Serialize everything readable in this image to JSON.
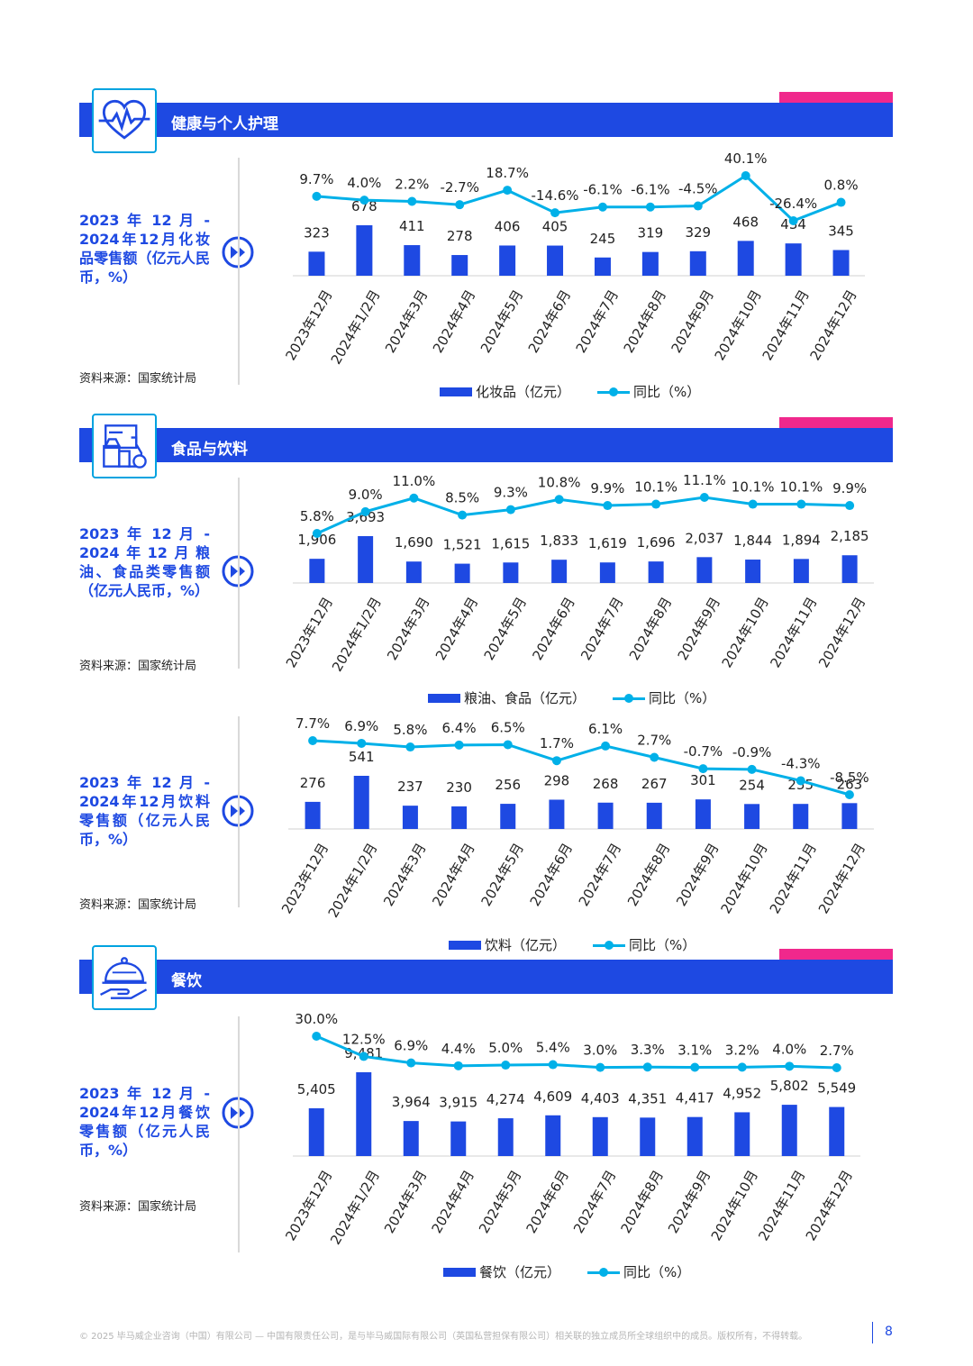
{
  "colors": {
    "bar": "#1e49e2",
    "line": "#00b0e8",
    "band": "#1e49e2",
    "accent": "#f0288c"
  },
  "sections": {
    "health": {
      "title": "健康与个人护理",
      "icon": "heart-pulse-icon"
    },
    "food": {
      "title": "食品与饮料",
      "icon": "grocery-icon"
    },
    "dining": {
      "title": "餐饮",
      "icon": "cloche-icon"
    }
  },
  "descriptions": {
    "cosmetics": "2023 年 12 月 - 2024年12月化妆品零售额（亿元人民币，%）",
    "grain": "2023 年 12 月 - 2024年12月粮油、食品类零售额（亿元人民币，%）",
    "beverage": "2023 年 12 月 - 2024年12月饮料零售额（亿元人民币，%）",
    "dining": "2023 年 12 月 - 2024年12月餐饮零售额（亿元人民币，%）"
  },
  "source_text": "资料来源：国家统计局",
  "legends": {
    "cosmetics": {
      "bar": "化妆品（亿元）",
      "line": "同比（%）"
    },
    "grain": {
      "bar": "粮油、食品（亿元）",
      "line": "同比（%）"
    },
    "beverage": {
      "bar": "饮料（亿元）",
      "line": "同比（%）"
    },
    "dining": {
      "bar": "餐饮（亿元）",
      "line": "同比（%）"
    }
  },
  "chart_data": [
    {
      "type": "bar",
      "categories": [
        "2023年12月",
        "2024年1/2月",
        "2024年3月",
        "2024年4月",
        "2024年5月",
        "2024年6月",
        "2024年7月",
        "2024年8月",
        "2024年9月",
        "2024年10月",
        "2024年11月",
        "2024年12月"
      ],
      "series": [
        {
          "name": "化妆品（亿元）",
          "type": "bar",
          "values": [
            323,
            678,
            411,
            278,
            406,
            405,
            245,
            319,
            329,
            468,
            434,
            345
          ],
          "labels": [
            "323",
            "678",
            "411",
            "278",
            "406",
            "405",
            "245",
            "319",
            "329",
            "468",
            "434",
            "345"
          ]
        },
        {
          "name": "同比（%）",
          "type": "line",
          "values": [
            9.7,
            4.0,
            2.2,
            -2.7,
            18.7,
            -14.6,
            -6.1,
            -6.1,
            -4.5,
            40.1,
            -26.4,
            0.8
          ],
          "labels": [
            "9.7%",
            "4.0%",
            "2.2%",
            "-2.7%",
            "18.7%",
            "-14.6%",
            "-6.1%",
            "-6.1%",
            "-4.5%",
            "40.1%",
            "-26.4%",
            "0.8%"
          ]
        }
      ]
    },
    {
      "type": "bar",
      "categories": [
        "2023年12月",
        "2024年1/2月",
        "2024年3月",
        "2024年4月",
        "2024年5月",
        "2024年6月",
        "2024年7月",
        "2024年8月",
        "2024年9月",
        "2024年10月",
        "2024年11月",
        "2024年12月"
      ],
      "series": [
        {
          "name": "粮油、食品（亿元）",
          "type": "bar",
          "values": [
            1906,
            3693,
            1690,
            1521,
            1615,
            1833,
            1619,
            1696,
            2037,
            1844,
            1894,
            2185
          ],
          "labels": [
            "1,906",
            "3,693",
            "1,690",
            "1,521",
            "1,615",
            "1,833",
            "1,619",
            "1,696",
            "2,037",
            "1,844",
            "1,894",
            "2,185"
          ]
        },
        {
          "name": "同比（%）",
          "type": "line",
          "values": [
            5.8,
            9.0,
            11.0,
            8.5,
            9.3,
            10.8,
            9.9,
            10.1,
            11.1,
            10.1,
            10.1,
            9.9
          ],
          "labels": [
            "5.8%",
            "9.0%",
            "11.0%",
            "8.5%",
            "9.3%",
            "10.8%",
            "9.9%",
            "10.1%",
            "11.1%",
            "10.1%",
            "10.1%",
            "9.9%"
          ]
        }
      ]
    },
    {
      "type": "bar",
      "categories": [
        "2023年12月",
        "2024年1/2月",
        "2024年3月",
        "2024年4月",
        "2024年5月",
        "2024年6月",
        "2024年7月",
        "2024年8月",
        "2024年9月",
        "2024年10月",
        "2024年11月",
        "2024年12月"
      ],
      "series": [
        {
          "name": "饮料（亿元）",
          "type": "bar",
          "values": [
            276,
            541,
            237,
            230,
            256,
            298,
            268,
            267,
            301,
            254,
            255,
            263
          ],
          "labels": [
            "276",
            "541",
            "237",
            "230",
            "256",
            "298",
            "268",
            "267",
            "301",
            "254",
            "255",
            "263"
          ]
        },
        {
          "name": "同比（%）",
          "type": "line",
          "values": [
            7.7,
            6.9,
            5.8,
            6.4,
            6.5,
            1.7,
            6.1,
            2.7,
            -0.7,
            -0.9,
            -4.3,
            -8.5
          ],
          "labels": [
            "7.7%",
            "6.9%",
            "5.8%",
            "6.4%",
            "6.5%",
            "1.7%",
            "6.1%",
            "2.7%",
            "-0.7%",
            "-0.9%",
            "-4.3%",
            "-8.5%"
          ]
        }
      ]
    },
    {
      "type": "bar",
      "categories": [
        "2023年12月",
        "2024年1/2月",
        "2024年3月",
        "2024年4月",
        "2024年5月",
        "2024年6月",
        "2024年7月",
        "2024年8月",
        "2024年9月",
        "2024年10月",
        "2024年11月",
        "2024年12月"
      ],
      "series": [
        {
          "name": "餐饮（亿元）",
          "type": "bar",
          "values": [
            5405,
            9481,
            3964,
            3915,
            4274,
            4609,
            4403,
            4351,
            4417,
            4952,
            5802,
            5549
          ],
          "labels": [
            "5,405",
            "9,481",
            "3,964",
            "3,915",
            "4,274",
            "4,609",
            "4,403",
            "4,351",
            "4,417",
            "4,952",
            "5,802",
            "5,549"
          ]
        },
        {
          "name": "同比（%）",
          "type": "line",
          "values": [
            30.0,
            12.5,
            6.9,
            4.4,
            5.0,
            5.4,
            3.0,
            3.3,
            3.1,
            3.2,
            4.0,
            2.7
          ],
          "labels": [
            "30.0%",
            "12.5%",
            "6.9%",
            "4.4%",
            "5.0%",
            "5.4%",
            "3.0%",
            "3.3%",
            "3.1%",
            "3.2%",
            "4.0%",
            "2.7%"
          ]
        }
      ]
    }
  ],
  "footer": {
    "text": "© 2025 毕马威企业咨询（中国）有限公司 — 中国有限责任公司，是与毕马威国际有限公司（英国私营担保有限公司）相关联的独立成员所全球组织中的成员。版权所有，不得转载。",
    "page": "8"
  }
}
